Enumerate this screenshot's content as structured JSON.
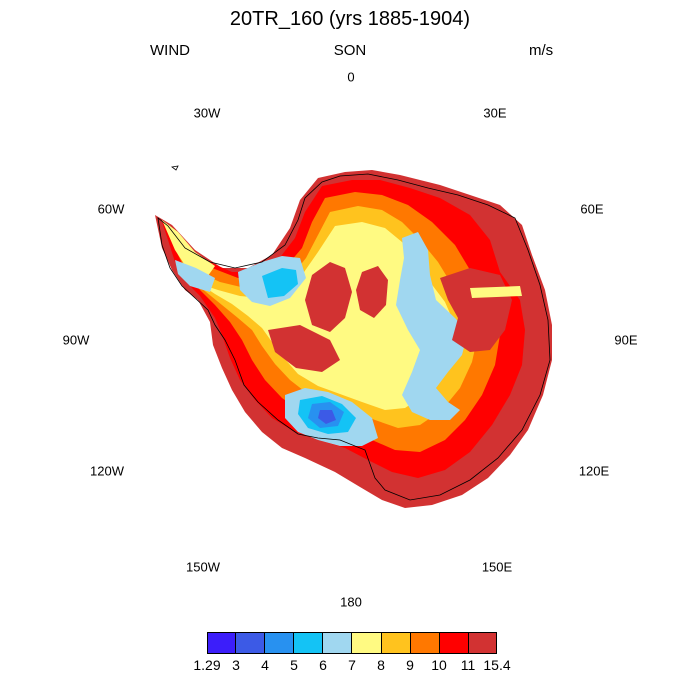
{
  "title": "20TR_160 (yrs 1885-1904)",
  "header": {
    "variable": "WIND",
    "season": "SON",
    "units": "m/s"
  },
  "longitude_labels": [
    {
      "id": "lon-0",
      "text": "0"
    },
    {
      "id": "lon-30e",
      "text": "30E"
    },
    {
      "id": "lon-60e",
      "text": "60E"
    },
    {
      "id": "lon-90e",
      "text": "90E"
    },
    {
      "id": "lon-120e",
      "text": "120E"
    },
    {
      "id": "lon-150e",
      "text": "150E"
    },
    {
      "id": "lon-180",
      "text": "180"
    },
    {
      "id": "lon-150w",
      "text": "150W"
    },
    {
      "id": "lon-120w",
      "text": "120W"
    },
    {
      "id": "lon-90w",
      "text": "90W"
    },
    {
      "id": "lon-60w",
      "text": "60W"
    },
    {
      "id": "lon-30w",
      "text": "30W"
    }
  ],
  "colorbar": {
    "labels": [
      "1.29",
      "3",
      "4",
      "5",
      "6",
      "7",
      "8",
      "9",
      "10",
      "11",
      "15.4"
    ],
    "colors": [
      "#3c1efa",
      "#3c5ae6",
      "#2891f0",
      "#14c3f5",
      "#a0d7f0",
      "#fffa82",
      "#ffc31e",
      "#ff7800",
      "#ff0000",
      "#d23232"
    ]
  }
}
